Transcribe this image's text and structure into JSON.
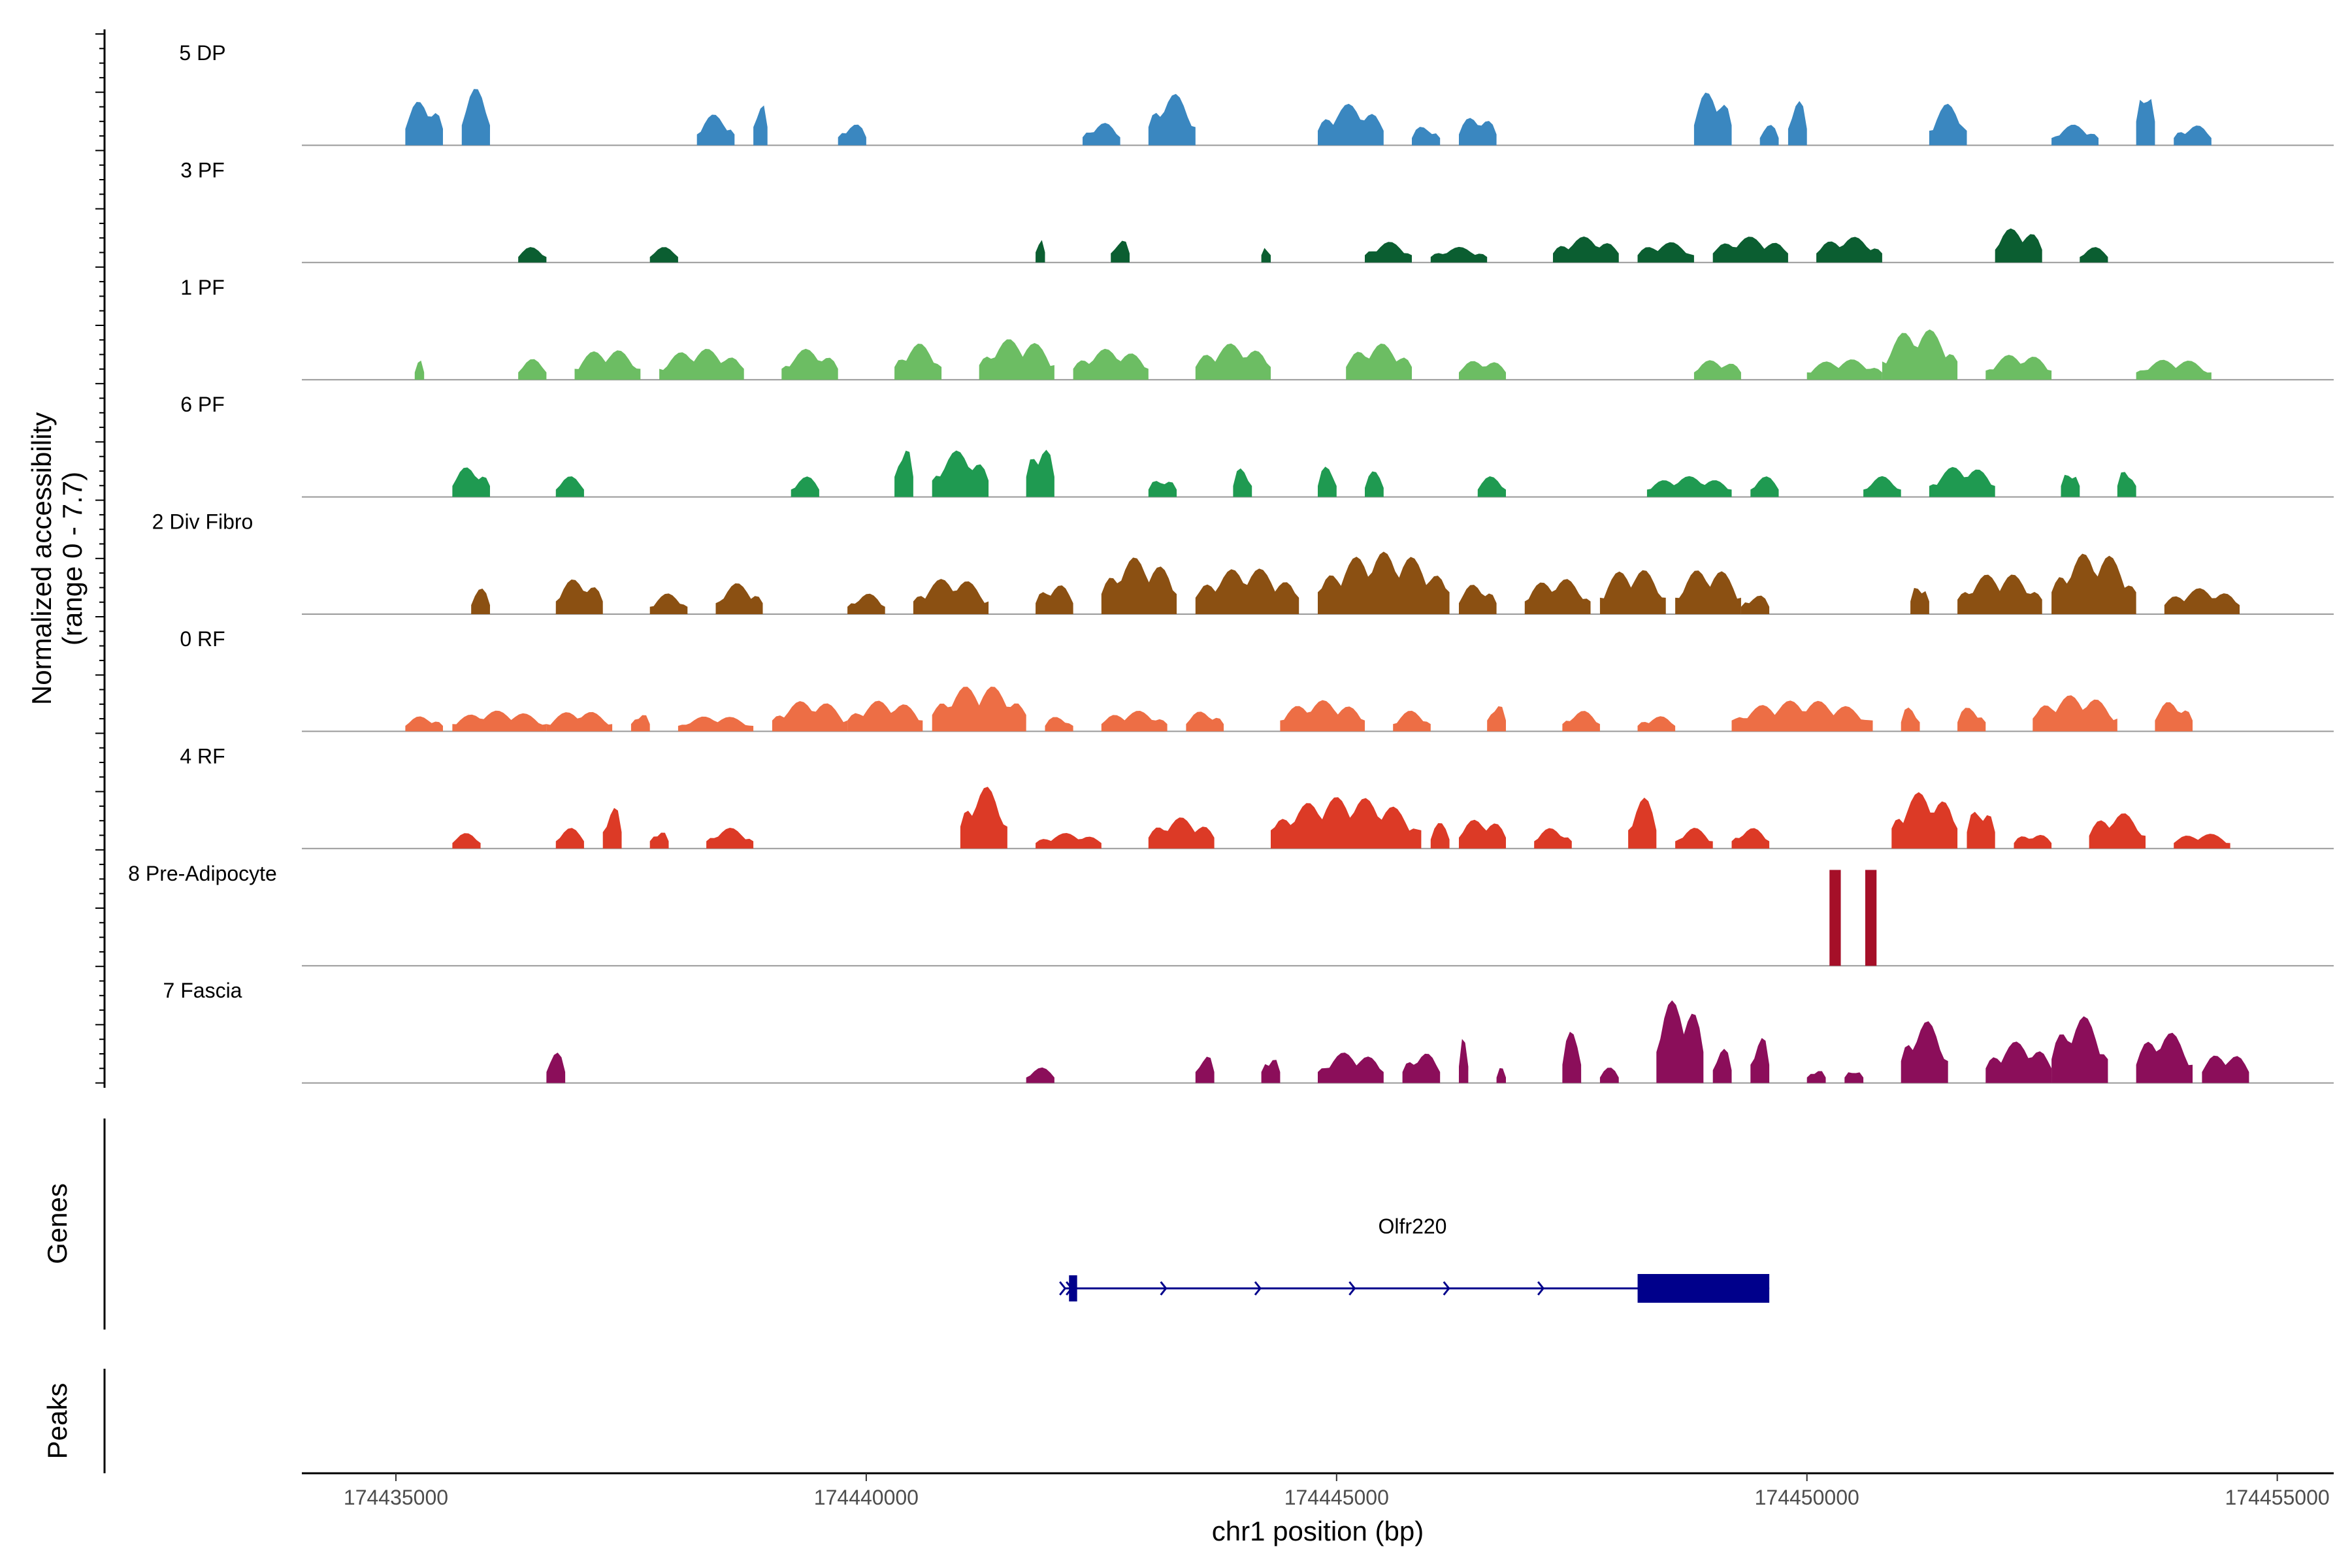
{
  "chart_data": {
    "type": "genome-coverage",
    "y_title_line1": "Normalized accessibility",
    "y_title_line2": "(range 0 - 7.7)",
    "x_title": "chr1 position (bp)",
    "x_range": [
      174434000,
      174455600
    ],
    "x_ticks": [
      174435000,
      174440000,
      174445000,
      174450000,
      174455000
    ],
    "x_tick_labels": [
      "174435000",
      "174440000",
      "174445000",
      "174450000",
      "174455000"
    ],
    "tracks": [
      {
        "label": "5 DP",
        "color": "#3a87c0",
        "peaks": [
          [
            174435100,
            174435500,
            0.45
          ],
          [
            174435700,
            174436000,
            0.55
          ],
          [
            174438200,
            174438600,
            0.3
          ],
          [
            174438800,
            174438950,
            0.5
          ],
          [
            174439700,
            174440000,
            0.22
          ],
          [
            174442300,
            174442700,
            0.22
          ],
          [
            174443000,
            174443500,
            0.5
          ],
          [
            174444800,
            174445500,
            0.4
          ],
          [
            174445800,
            174446100,
            0.2
          ],
          [
            174446300,
            174446700,
            0.3
          ],
          [
            174448800,
            174449200,
            0.55
          ],
          [
            174449500,
            174449700,
            0.2
          ],
          [
            174449800,
            174450000,
            0.45
          ],
          [
            174451300,
            174451700,
            0.4
          ],
          [
            174452600,
            174453100,
            0.2
          ],
          [
            174453500,
            174453700,
            0.65
          ],
          [
            174453900,
            174454300,
            0.2
          ]
        ]
      },
      {
        "label": "3 PF",
        "color": "#0b5e31",
        "peaks": [
          [
            174436300,
            174436600,
            0.15
          ],
          [
            174437700,
            174438000,
            0.15
          ],
          [
            174441800,
            174441900,
            0.28
          ],
          [
            174442600,
            174442800,
            0.25
          ],
          [
            174444200,
            174444300,
            0.2
          ],
          [
            174445300,
            174445800,
            0.2
          ],
          [
            174446000,
            174446600,
            0.15
          ],
          [
            174447300,
            174448000,
            0.25
          ],
          [
            174448200,
            174448800,
            0.2
          ],
          [
            174449000,
            174449800,
            0.25
          ],
          [
            174450100,
            174450800,
            0.25
          ],
          [
            174452000,
            174452500,
            0.35
          ],
          [
            174452900,
            174453200,
            0.15
          ]
        ]
      },
      {
        "label": "1 PF",
        "color": "#6cbd63",
        "peaks": [
          [
            174435200,
            174435300,
            0.2
          ],
          [
            174436300,
            174436600,
            0.2
          ],
          [
            174436900,
            174437600,
            0.3
          ],
          [
            174437800,
            174438700,
            0.3
          ],
          [
            174439100,
            174439700,
            0.3
          ],
          [
            174440300,
            174440800,
            0.35
          ],
          [
            174441200,
            174442000,
            0.4
          ],
          [
            174442200,
            174443000,
            0.3
          ],
          [
            174443500,
            174444300,
            0.35
          ],
          [
            174445100,
            174445800,
            0.35
          ],
          [
            174446300,
            174446800,
            0.2
          ],
          [
            174448800,
            174449300,
            0.2
          ],
          [
            174450000,
            174450800,
            0.2
          ],
          [
            174450800,
            174451600,
            0.5
          ],
          [
            174451900,
            174452600,
            0.25
          ],
          [
            174453500,
            174454300,
            0.2
          ]
        ]
      },
      {
        "label": "6 PF",
        "color": "#1f9a51",
        "peaks": [
          [
            174435600,
            174436000,
            0.3
          ],
          [
            174436700,
            174437000,
            0.2
          ],
          [
            174439200,
            174439500,
            0.2
          ],
          [
            174440300,
            174440500,
            0.55
          ],
          [
            174440700,
            174441300,
            0.45
          ],
          [
            174441700,
            174442000,
            0.55
          ],
          [
            174443000,
            174443300,
            0.2
          ],
          [
            174443900,
            174444100,
            0.3
          ],
          [
            174444800,
            174445000,
            0.3
          ],
          [
            174445300,
            174445500,
            0.25
          ],
          [
            174446500,
            174446800,
            0.2
          ],
          [
            174448300,
            174449200,
            0.2
          ],
          [
            174449400,
            174449700,
            0.2
          ],
          [
            174450600,
            174451000,
            0.2
          ],
          [
            174451300,
            174452000,
            0.3
          ],
          [
            174452700,
            174452900,
            0.3
          ],
          [
            174453300,
            174453500,
            0.3
          ]
        ]
      },
      {
        "label": "2 Div Fibro",
        "color": "#8b5012",
        "peaks": [
          [
            174435800,
            174436000,
            0.25
          ],
          [
            174436700,
            174437200,
            0.35
          ],
          [
            174437700,
            174438100,
            0.2
          ],
          [
            174438400,
            174438900,
            0.3
          ],
          [
            174439800,
            174440200,
            0.2
          ],
          [
            174440500,
            174441300,
            0.35
          ],
          [
            174441800,
            174442200,
            0.3
          ],
          [
            174442500,
            174443300,
            0.55
          ],
          [
            174443500,
            174444600,
            0.45
          ],
          [
            174444800,
            174446200,
            0.6
          ],
          [
            174446300,
            174446700,
            0.3
          ],
          [
            174447000,
            174447700,
            0.35
          ],
          [
            174447800,
            174448500,
            0.45
          ],
          [
            174448600,
            174449300,
            0.45
          ],
          [
            174449300,
            174449600,
            0.2
          ],
          [
            174451100,
            174451300,
            0.35
          ],
          [
            174451600,
            174452500,
            0.4
          ],
          [
            174452600,
            174453500,
            0.6
          ],
          [
            174453800,
            174454600,
            0.25
          ]
        ]
      },
      {
        "label": "0 RF",
        "color": "#ed6e45",
        "peaks": [
          [
            174435100,
            174435500,
            0.15
          ],
          [
            174435600,
            174436600,
            0.2
          ],
          [
            174436600,
            174437300,
            0.2
          ],
          [
            174437500,
            174437700,
            0.2
          ],
          [
            174438000,
            174438800,
            0.15
          ],
          [
            174439000,
            174439800,
            0.3
          ],
          [
            174439800,
            174440600,
            0.3
          ],
          [
            174440700,
            174441700,
            0.45
          ],
          [
            174441900,
            174442200,
            0.15
          ],
          [
            174442500,
            174443200,
            0.2
          ],
          [
            174443400,
            174443800,
            0.2
          ],
          [
            174444400,
            174445300,
            0.3
          ],
          [
            174445600,
            174446000,
            0.2
          ],
          [
            174446600,
            174446800,
            0.3
          ],
          [
            174447400,
            174447800,
            0.2
          ],
          [
            174448200,
            174448600,
            0.15
          ],
          [
            174449200,
            174450700,
            0.3
          ],
          [
            174451000,
            174451200,
            0.25
          ],
          [
            174451600,
            174451900,
            0.25
          ],
          [
            174452400,
            174453300,
            0.35
          ],
          [
            174453700,
            174454100,
            0.3
          ]
        ]
      },
      {
        "label": "4 RF",
        "color": "#dc3a26",
        "peaks": [
          [
            174435600,
            174435900,
            0.15
          ],
          [
            174436700,
            174437000,
            0.2
          ],
          [
            174437200,
            174437400,
            0.45
          ],
          [
            174437700,
            174437900,
            0.2
          ],
          [
            174438300,
            174438800,
            0.2
          ],
          [
            174441000,
            174441500,
            0.6
          ],
          [
            174441800,
            174442500,
            0.15
          ],
          [
            174443000,
            174443700,
            0.3
          ],
          [
            174444300,
            174445900,
            0.5
          ],
          [
            174446000,
            174446200,
            0.25
          ],
          [
            174446300,
            174446800,
            0.3
          ],
          [
            174447100,
            174447500,
            0.2
          ],
          [
            174448100,
            174448400,
            0.5
          ],
          [
            174448600,
            174449000,
            0.2
          ],
          [
            174449200,
            174449600,
            0.2
          ],
          [
            174450900,
            174451600,
            0.55
          ],
          [
            174451700,
            174452000,
            0.45
          ],
          [
            174452200,
            174452600,
            0.15
          ],
          [
            174453000,
            174453600,
            0.35
          ],
          [
            174453900,
            174454500,
            0.15
          ]
        ]
      },
      {
        "label": "8 Pre-Adipocyte",
        "color": "#a50f28",
        "peaks": [
          [
            174450240,
            174450360,
            0.92
          ],
          [
            174450620,
            174450740,
            0.92
          ]
        ]
      },
      {
        "label": "7 Fascia",
        "color": "#8b0e5a",
        "peaks": [
          [
            174436600,
            174436800,
            0.3
          ],
          [
            174441700,
            174442000,
            0.15
          ],
          [
            174443500,
            174443700,
            0.3
          ],
          [
            174444200,
            174444400,
            0.3
          ],
          [
            174444800,
            174445500,
            0.3
          ],
          [
            174445700,
            174446100,
            0.3
          ],
          [
            174446300,
            174446400,
            0.45
          ],
          [
            174446700,
            174446800,
            0.15
          ],
          [
            174447400,
            174447600,
            0.5
          ],
          [
            174447800,
            174448000,
            0.15
          ],
          [
            174448400,
            174448900,
            0.85
          ],
          [
            174449000,
            174449200,
            0.35
          ],
          [
            174449400,
            174449600,
            0.5
          ],
          [
            174450000,
            174450200,
            0.15
          ],
          [
            174450400,
            174450600,
            0.15
          ],
          [
            174451000,
            174451500,
            0.6
          ],
          [
            174451900,
            174452600,
            0.4
          ],
          [
            174452600,
            174453200,
            0.65
          ],
          [
            174453500,
            174454100,
            0.5
          ],
          [
            174454200,
            174454700,
            0.3
          ]
        ]
      }
    ]
  },
  "genes": {
    "title": "Genes",
    "gene_name": "Olfr220",
    "start": 174442100,
    "end": 174449600,
    "cds_start": 174448200,
    "cds_end": 174449600,
    "first_exon_end": 174442200,
    "color": "#00008b"
  },
  "peaks_panel": {
    "title": "Peaks"
  }
}
